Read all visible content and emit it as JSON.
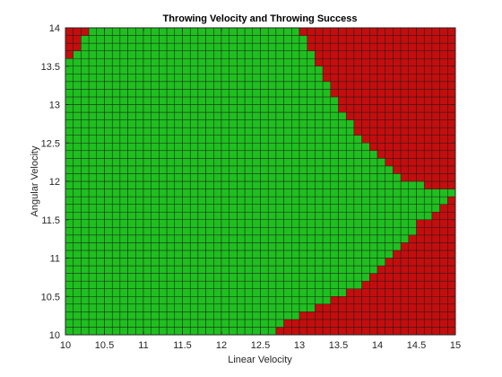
{
  "chart_data": {
    "type": "heatmap",
    "title": "Throwing Velocity and Throwing Success",
    "xlabel": "Linear Velocity",
    "ylabel": "Angular Velocity",
    "xlim": [
      10,
      15
    ],
    "ylim": [
      10,
      14
    ],
    "x_step": 0.1,
    "y_step": 0.1,
    "xticks": [
      10,
      10.5,
      11,
      11.5,
      12,
      12.5,
      13,
      13.5,
      14,
      14.5,
      15
    ],
    "xtick_labels": [
      "10",
      "10.5",
      "11",
      "11.5",
      "12",
      "12.5",
      "13",
      "13.5",
      "14",
      "14.5",
      "15"
    ],
    "yticks": [
      10,
      10.5,
      11,
      11.5,
      12,
      12.5,
      13,
      13.5,
      14
    ],
    "ytick_labels": [
      "10",
      "10.5",
      "11",
      "11.5",
      "12",
      "12.5",
      "13",
      "13.5",
      "14"
    ],
    "grid": true,
    "legend": "none",
    "colors": {
      "success": "#1fbf1f",
      "failure": "#c40d0d",
      "cell_edge": "#1a1a1a"
    },
    "success_region": {
      "description_of_encoding": "",
      "upper_boundary_y": [
        11.9,
        12.1
      ],
      "boundary_points_upper": [
        [
          10.0,
          13.5
        ],
        [
          10.2,
          13.8
        ],
        [
          10.4,
          14.0
        ],
        [
          13.0,
          14.0
        ],
        [
          13.2,
          13.6
        ],
        [
          13.5,
          13.0
        ],
        [
          13.8,
          12.5
        ],
        [
          14.0,
          12.3
        ],
        [
          14.3,
          12.0
        ],
        [
          14.95,
          11.9
        ]
      ],
      "boundary_points_lower": [
        [
          14.95,
          11.8
        ],
        [
          14.7,
          11.6
        ],
        [
          14.4,
          11.3
        ],
        [
          14.1,
          10.9
        ],
        [
          13.7,
          10.6
        ],
        [
          13.3,
          10.4
        ],
        [
          12.9,
          10.2
        ],
        [
          12.6,
          10.0
        ]
      ]
    }
  }
}
